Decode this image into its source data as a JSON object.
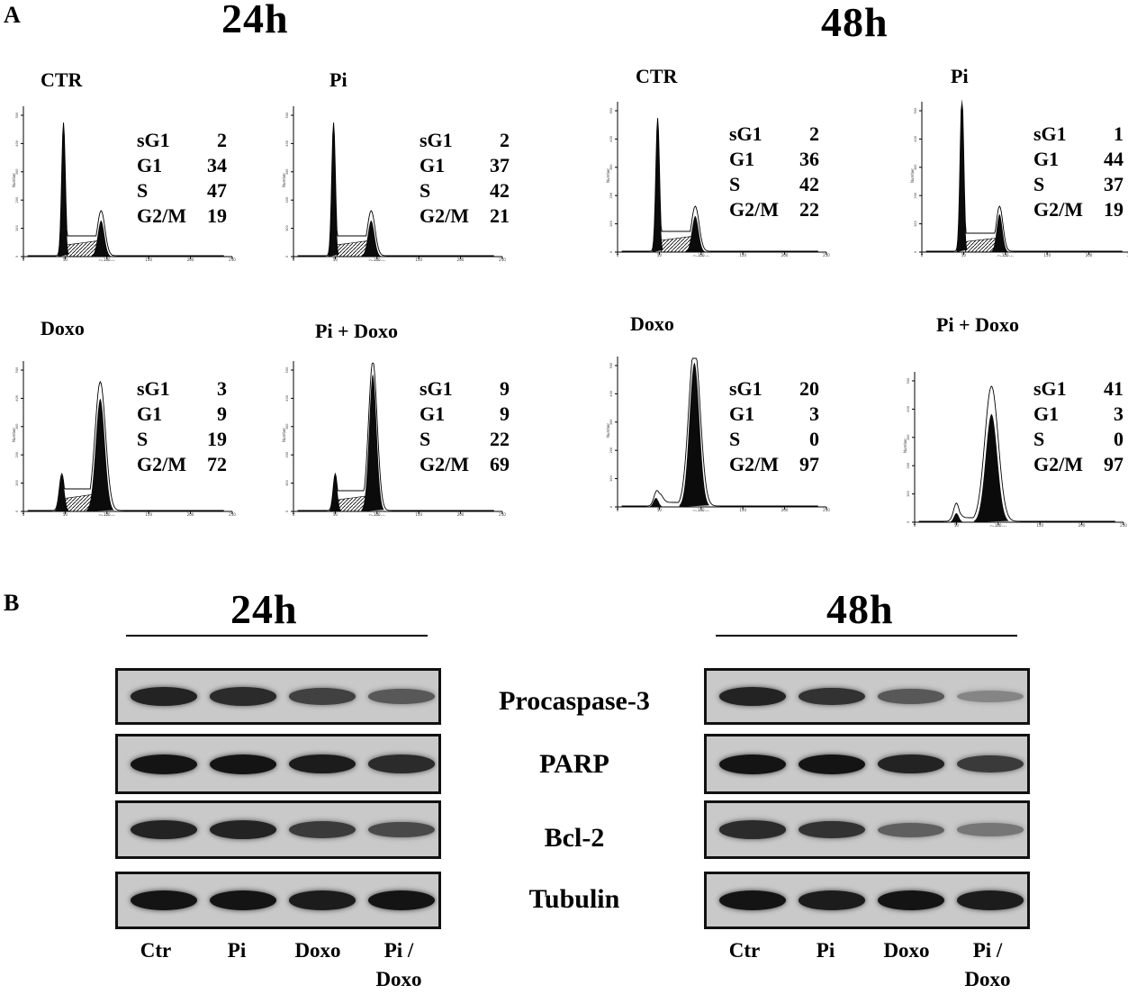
{
  "panel_a": {
    "letter": "A",
    "time_24": "24h",
    "time_48": "48h",
    "histograms": [
      {
        "id": "24-ctr",
        "title": "CTR",
        "stats": [
          [
            "sG1",
            "2"
          ],
          [
            "G1",
            "34"
          ],
          [
            "S",
            "47"
          ],
          [
            "G2/M",
            "19"
          ]
        ]
      },
      {
        "id": "24-pi",
        "title": "Pi",
        "stats": [
          [
            "sG1",
            "2"
          ],
          [
            "G1",
            "37"
          ],
          [
            "S",
            "42"
          ],
          [
            "G2/M",
            "21"
          ]
        ]
      },
      {
        "id": "48-ctr",
        "title": "CTR",
        "stats": [
          [
            "sG1",
            "2"
          ],
          [
            "G1",
            "36"
          ],
          [
            "S",
            "42"
          ],
          [
            "G2/M",
            "22"
          ]
        ]
      },
      {
        "id": "48-pi",
        "title": "Pi",
        "stats": [
          [
            "sG1",
            "1"
          ],
          [
            "G1",
            "44"
          ],
          [
            "S",
            "37"
          ],
          [
            "G2/M",
            "19"
          ]
        ]
      },
      {
        "id": "24-doxo",
        "title": "Doxo",
        "stats": [
          [
            "sG1",
            "3"
          ],
          [
            "G1",
            "9"
          ],
          [
            "S",
            "19"
          ],
          [
            "G2/M",
            "72"
          ]
        ]
      },
      {
        "id": "24-pidoxo",
        "title": "Pi + Doxo",
        "stats": [
          [
            "sG1",
            "9"
          ],
          [
            "G1",
            "9"
          ],
          [
            "S",
            "22"
          ],
          [
            "G2/M",
            "69"
          ]
        ]
      },
      {
        "id": "48-doxo",
        "title": "Doxo",
        "stats": [
          [
            "sG1",
            "20"
          ],
          [
            "G1",
            "3"
          ],
          [
            "S",
            "0"
          ],
          [
            "G2/M",
            "97"
          ]
        ]
      },
      {
        "id": "48-pidoxo",
        "title": "Pi + Doxo",
        "stats": [
          [
            "sG1",
            "41"
          ],
          [
            "G1",
            "3"
          ],
          [
            "S",
            "0"
          ],
          [
            "G2/M",
            "97"
          ]
        ]
      }
    ]
  },
  "panel_b": {
    "letter": "B",
    "time_24": "24h",
    "time_48": "48h",
    "proteins": [
      "Procaspase-3",
      "PARP",
      "Bcl-2",
      "Tubulin"
    ],
    "lanes": [
      "Ctr",
      "Pi",
      "Doxo",
      "Pi /\nDoxo"
    ],
    "band_intensity_24": [
      [
        0.9,
        0.85,
        0.7,
        0.55
      ],
      [
        1.0,
        1.0,
        0.95,
        0.85
      ],
      [
        0.9,
        0.9,
        0.75,
        0.65
      ],
      [
        1.0,
        1.0,
        0.95,
        1.0
      ]
    ],
    "band_intensity_48": [
      [
        0.9,
        0.8,
        0.55,
        0.25
      ],
      [
        1.0,
        1.0,
        0.9,
        0.75
      ],
      [
        0.85,
        0.8,
        0.5,
        0.35
      ],
      [
        1.0,
        0.95,
        1.0,
        0.95
      ]
    ]
  },
  "colors": {
    "band": "#111111",
    "blot_bg": "#cacaca",
    "hatch": "#000000"
  }
}
